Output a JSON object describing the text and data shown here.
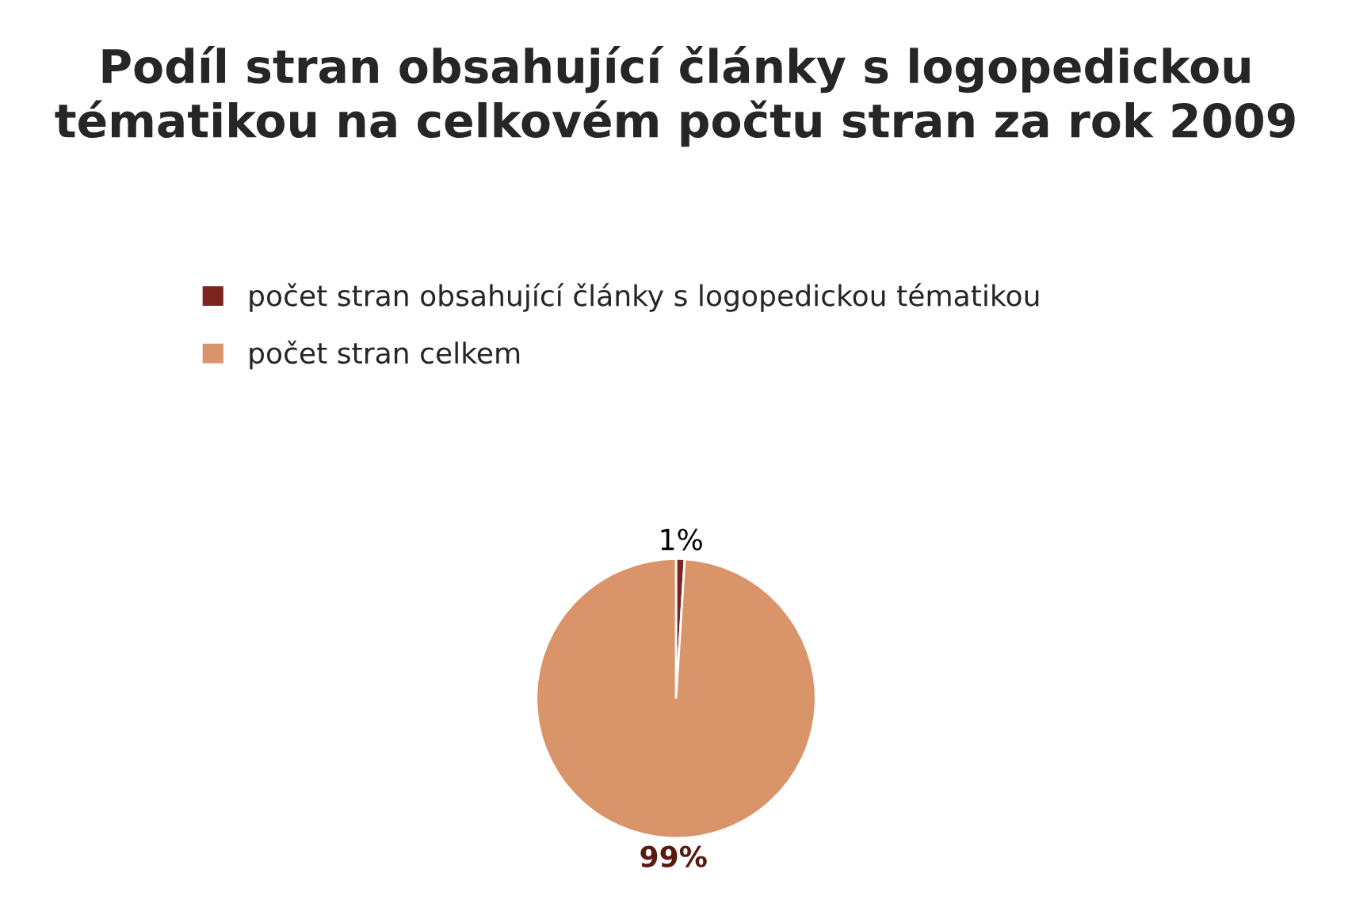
{
  "chart_data": {
    "type": "pie",
    "title": "Podíl stran obsahující články s logopedickou tématikou na celkovém počtu stran za rok 2009",
    "categories": [
      "počet stran obsahující články s logopedickou tématikou",
      "počet stran celkem"
    ],
    "values": [
      1,
      99
    ],
    "colors": [
      "#7b2420",
      "#d9946a"
    ],
    "value_labels": [
      "1%",
      "99%"
    ],
    "legend": "top"
  }
}
